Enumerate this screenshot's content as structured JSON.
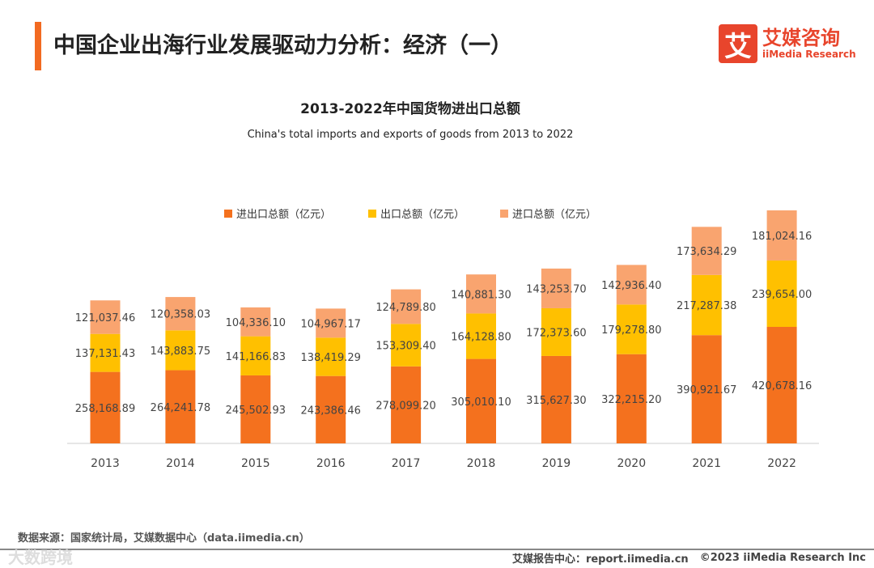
{
  "header": {
    "title": "中国企业出海行业发展驱动力分析：经济（一）"
  },
  "logo": {
    "mark": "艾",
    "cn": "艾媒咨询",
    "en": "iiMedia Research"
  },
  "chart_data": {
    "type": "bar",
    "stacked": true,
    "title": "2013-2022年中国货物进出口总额",
    "subtitle": "China's total imports and exports of goods from 2013 to 2022",
    "legend_position": "top",
    "grid": false,
    "categories": [
      "2013",
      "2014",
      "2015",
      "2016",
      "2017",
      "2018",
      "2019",
      "2020",
      "2021",
      "2022"
    ],
    "series": [
      {
        "name": "进出口总额（亿元）",
        "color": "#f4711e",
        "values": [
          258168.89,
          264241.78,
          245502.93,
          243386.46,
          278099.2,
          305010.1,
          315627.3,
          322215.2,
          390921.67,
          420678.16
        ],
        "labels": [
          "258,168.89",
          "264,241.78",
          "245,502.93",
          "243,386.46",
          "278,099.20",
          "305,010.10",
          "315,627.30",
          "322,215.20",
          "390,921.67",
          "420,678.16"
        ]
      },
      {
        "name": "出口总额（亿元）",
        "color": "#ffc000",
        "values": [
          137131.43,
          143883.75,
          141166.83,
          138419.29,
          153309.4,
          164128.8,
          172373.6,
          179278.8,
          217287.38,
          239654.0
        ],
        "labels": [
          "137,131.43",
          "143,883.75",
          "141,166.83",
          "138,419.29",
          "153,309.40",
          "164,128.80",
          "172,373.60",
          "179,278.80",
          "217,287.38",
          "239,654.00"
        ]
      },
      {
        "name": "进口总额（亿元）",
        "color": "#f9a46f",
        "values": [
          121037.46,
          120358.03,
          104336.1,
          104967.17,
          124789.8,
          140881.3,
          143253.7,
          142936.4,
          173634.29,
          181024.16
        ],
        "labels": [
          "121,037.46",
          "120,358.03",
          "104,336.10",
          "104,967.17",
          "124,789.80",
          "140,881.30",
          "143,253.70",
          "142,936.40",
          "173,634.29",
          "181,024.16"
        ]
      }
    ]
  },
  "footer": {
    "source": "数据来源：国家统计局，艾媒数据中心（data.iimedia.cn）",
    "watermark": "大数跨境",
    "report_center": "艾媒报告中心：report.iimedia.cn",
    "copyright": "©2023  iiMedia Research  Inc"
  }
}
